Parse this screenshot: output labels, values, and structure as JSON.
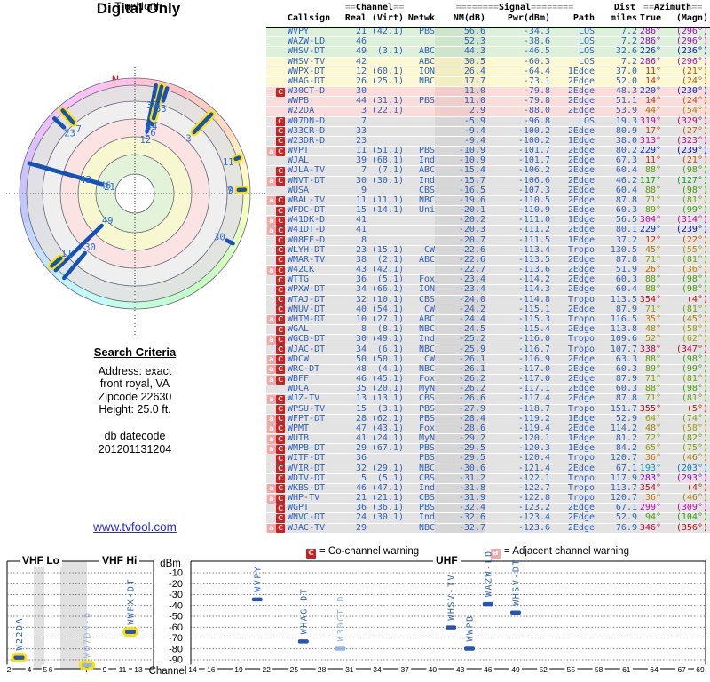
{
  "radar": {
    "title": "Digital Only",
    "subtitle": "TrueNorth",
    "north_marker": "N",
    "accent_blue": "#1353b8",
    "highlight_yellow": "#ffe100",
    "stations": [
      {
        "ch": "21",
        "az": 286,
        "nm": 56.6,
        "yellow": false
      },
      {
        "ch": "46",
        "az": 286,
        "nm": 52.3,
        "yellow": false
      },
      {
        "ch": "49",
        "az": 226,
        "nm": 44.3,
        "yellow": false
      },
      {
        "ch": "42",
        "az": 286,
        "nm": 30.5,
        "yellow": false
      },
      {
        "ch": "12",
        "az": 11,
        "nm": 26.4,
        "yellow": false
      },
      {
        "ch": "26",
        "az": 14,
        "nm": 17.7,
        "yellow": false
      },
      {
        "ch": "30",
        "az": 220,
        "nm": 11.0,
        "yellow": false
      },
      {
        "ch": "44",
        "az": 14,
        "nm": 11.0,
        "yellow": true
      },
      {
        "ch": "3",
        "az": 44,
        "nm": 2.9,
        "yellow": true
      },
      {
        "ch": "7",
        "az": 319,
        "nm": -5.9,
        "yellow": true
      },
      {
        "ch": "33",
        "az": 17,
        "nm": -9.4,
        "yellow": false
      },
      {
        "ch": "23",
        "az": 313,
        "nm": -9.4,
        "yellow": false
      },
      {
        "ch": "11",
        "az": 229,
        "nm": -10.9,
        "yellow": true
      },
      {
        "ch": "39",
        "az": 11,
        "nm": -10.9,
        "yellow": false
      },
      {
        "ch": "7",
        "az": 88,
        "nm": -15.4,
        "yellow": false
      },
      {
        "ch": "30",
        "az": 117,
        "nm": -15.7,
        "yellow": false
      },
      {
        "ch": "9",
        "az": 88,
        "nm": -16.5,
        "yellow": true
      },
      {
        "ch": "11",
        "az": 71,
        "nm": -19.6,
        "yellow": true
      }
    ]
  },
  "search_criteria": {
    "heading": "Search Criteria",
    "lines": [
      "Address: exact",
      "front royal, VA",
      "Zipcode 22630",
      "Height: 25.0 ft."
    ],
    "db_lines": [
      "db datecode",
      "201201131204"
    ]
  },
  "link": {
    "text": "www.tvfool.com"
  },
  "table": {
    "group_headers": {
      "channel": {
        "pre": "==",
        "label": "Channel",
        "post": "=="
      },
      "signal": {
        "pre": "========",
        "label": "Signal",
        "post": "========"
      },
      "dist": {
        "label": "Dist"
      },
      "azimuth": {
        "pre": "==",
        "label": "Azimuth",
        "post": "=="
      }
    },
    "columns": [
      "Callsign",
      "Real",
      "(Virt)",
      "Netwk",
      "NM(dB)",
      "Pwr(dBm)",
      "Path",
      "miles",
      "True",
      "(Magn)"
    ],
    "rows": [
      [
        "",
        "WVPY",
        "21",
        "(42.1)",
        "PBS",
        "56.6",
        "-34.3",
        "LOS",
        "7.2",
        "286°",
        "(296°)",
        "g"
      ],
      [
        "",
        "WAZW-LD",
        "46",
        "",
        "",
        "52.3",
        "-38.6",
        "LOS",
        "7.2",
        "286°",
        "(296°)",
        "g"
      ],
      [
        "",
        "WHSV-DT",
        "49",
        "(3.1)",
        "ABC",
        "44.3",
        "-46.5",
        "LOS",
        "32.6",
        "226°",
        "(236°)",
        "g"
      ],
      [
        "",
        "WHSV-TV",
        "42",
        "",
        "ABC",
        "30.5",
        "-60.3",
        "LOS",
        "7.2",
        "286°",
        "(296°)",
        "y"
      ],
      [
        "",
        "WWPX-DT",
        "12",
        "(60.1)",
        "ION",
        "26.4",
        "-64.4",
        "1Edge",
        "37.0",
        "11°",
        "(21°)",
        "y"
      ],
      [
        "",
        "WHAG-DT",
        "26",
        "(25.1)",
        "NBC",
        "17.7",
        "-73.1",
        "2Edge",
        "52.0",
        "14°",
        "(24°)",
        "y"
      ],
      [
        "C",
        "W30CT-D",
        "30",
        "",
        "",
        "11.0",
        "-79.8",
        "2Edge",
        "48.3",
        "220°",
        "(230°)",
        "p"
      ],
      [
        "",
        "WWPB",
        "44",
        "(31.1)",
        "PBS",
        "11.0",
        "-79.8",
        "2Edge",
        "51.1",
        "14°",
        "(24°)",
        "p"
      ],
      [
        "",
        "W22DA",
        "3",
        "(22.1)",
        "",
        "2.9",
        "-88.0",
        "2Edge",
        "53.9",
        "44°",
        "(54°)",
        "p"
      ],
      [
        "C",
        "W07DN-D",
        "7",
        "",
        "",
        "-5.9",
        "-96.8",
        "LOS",
        "19.3",
        "319°",
        "(329°)",
        "x"
      ],
      [
        "C",
        "W33CR-D",
        "33",
        "",
        "",
        "-9.4",
        "-100.2",
        "2Edge",
        "80.9",
        "17°",
        "(27°)",
        "x"
      ],
      [
        "C",
        "W23DR-D",
        "23",
        "",
        "",
        "-9.4",
        "-100.2",
        "1Edge",
        "38.0",
        "313°",
        "(323°)",
        "x"
      ],
      [
        "aC",
        "WVPT",
        "11",
        "(51.1)",
        "PBS",
        "-10.9",
        "-101.7",
        "2Edge",
        "80.2",
        "229°",
        "(239°)",
        "x"
      ],
      [
        "",
        "WJAL",
        "39",
        "(68.1)",
        "Ind",
        "-10.9",
        "-101.7",
        "2Edge",
        "67.3",
        "11°",
        "(21°)",
        "x"
      ],
      [
        "C",
        "WJLA-TV",
        "7",
        "(7.1)",
        "ABC",
        "-15.4",
        "-106.2",
        "2Edge",
        "60.4",
        "88°",
        "(98°)",
        "x"
      ],
      [
        "aC",
        "WNVT-DT",
        "30",
        "(30.1)",
        "Ind",
        "-15.7",
        "-106.6",
        "2Edge",
        "46.2",
        "117°",
        "(127°)",
        "x"
      ],
      [
        "",
        "WUSA",
        "9",
        "",
        "CBS",
        "-16.5",
        "-107.3",
        "2Edge",
        "60.4",
        "88°",
        "(98°)",
        "x"
      ],
      [
        "aC",
        "WBAL-TV",
        "11",
        "(11.1)",
        "NBC",
        "-19.6",
        "-110.5",
        "2Edge",
        "87.8",
        "71°",
        "(81°)",
        "x"
      ],
      [
        "C",
        "WFDC-DT",
        "15",
        "(14.1)",
        "Uni",
        "-20.1",
        "-110.9",
        "2Edge",
        "60.3",
        "89°",
        "(99°)",
        "x"
      ],
      [
        "aC",
        "W41DK-D",
        "41",
        "",
        "",
        "-20.2",
        "-111.0",
        "1Edge",
        "56.5",
        "304°",
        "(314°)",
        "x"
      ],
      [
        "aC",
        "W41DT-D",
        "41",
        "",
        "",
        "-20.3",
        "-111.2",
        "2Edge",
        "80.1",
        "229°",
        "(239°)",
        "x"
      ],
      [
        "C",
        "W08EE-D",
        "8",
        "",
        "",
        "-20.7",
        "-111.5",
        "1Edge",
        "37.2",
        "12°",
        "(22°)",
        "x"
      ],
      [
        "C",
        "WLYH-DT",
        "23",
        "(15.1)",
        "CW",
        "-22.6",
        "-113.4",
        "Tropo",
        "130.5",
        "45°",
        "(55°)",
        "x"
      ],
      [
        "C",
        "WMAR-TV",
        "38",
        "(2.1)",
        "ABC",
        "-22.6",
        "-113.5",
        "2Edge",
        "87.8",
        "71°",
        "(81°)",
        "x"
      ],
      [
        "aC",
        "W42CK",
        "43",
        "(42.1)",
        "",
        "-22.7",
        "-113.6",
        "2Edge",
        "51.9",
        "26°",
        "(36°)",
        "x"
      ],
      [
        "C",
        "WTTG",
        "36",
        "(5.1)",
        "Fox",
        "-23.4",
        "-114.2",
        "2Edge",
        "60.3",
        "88°",
        "(98°)",
        "x"
      ],
      [
        "C",
        "WPXW-DT",
        "34",
        "(66.1)",
        "ION",
        "-23.4",
        "-114.3",
        "2Edge",
        "60.4",
        "88°",
        "(98°)",
        "x"
      ],
      [
        "C",
        "WTAJ-DT",
        "32",
        "(10.1)",
        "CBS",
        "-24.0",
        "-114.8",
        "Tropo",
        "113.5",
        "354°",
        "(4°)",
        "x"
      ],
      [
        "C",
        "WNUV-DT",
        "40",
        "(54.1)",
        "CW",
        "-24.2",
        "-115.1",
        "2Edge",
        "87.9",
        "71°",
        "(81°)",
        "x"
      ],
      [
        "aC",
        "WHTM-DT",
        "10",
        "(27.1)",
        "ABC",
        "-24.4",
        "-115.3",
        "Tropo",
        "116.5",
        "35°",
        "(45°)",
        "x"
      ],
      [
        "C",
        "WGAL",
        "8",
        "(8.1)",
        "NBC",
        "-24.5",
        "-115.4",
        "2Edge",
        "113.8",
        "48°",
        "(58°)",
        "x"
      ],
      [
        "aC",
        "WGCB-DT",
        "30",
        "(49.1)",
        "Ind",
        "-25.2",
        "-116.0",
        "Tropo",
        "109.6",
        "52°",
        "(62°)",
        "x"
      ],
      [
        "C",
        "WJAC-DT",
        "34",
        "(6.1)",
        "NBC",
        "-25.9",
        "-116.7",
        "Tropo",
        "107.7",
        "338°",
        "(347°)",
        "x"
      ],
      [
        "aC",
        "WDCW",
        "50",
        "(50.1)",
        "CW",
        "-26.1",
        "-116.9",
        "2Edge",
        "63.3",
        "88°",
        "(98°)",
        "x"
      ],
      [
        "aC",
        "WRC-DT",
        "48",
        "(4.1)",
        "NBC",
        "-26.1",
        "-117.0",
        "2Edge",
        "60.3",
        "89°",
        "(99°)",
        "x"
      ],
      [
        "aC",
        "WBFF",
        "46",
        "(45.1)",
        "Fox",
        "-26.2",
        "-117.0",
        "2Edge",
        "87.9",
        "71°",
        "(81°)",
        "x"
      ],
      [
        "",
        "WDCA",
        "35",
        "(20.1)",
        "MyN",
        "-26.2",
        "-117.1",
        "2Edge",
        "60.3",
        "88°",
        "(98°)",
        "x"
      ],
      [
        "aC",
        "WJZ-TV",
        "13",
        "(13.1)",
        "CBS",
        "-26.6",
        "-117.4",
        "2Edge",
        "87.8",
        "71°",
        "(81°)",
        "x"
      ],
      [
        "C",
        "WPSU-TV",
        "15",
        "(3.1)",
        "PBS",
        "-27.9",
        "-118.7",
        "Tropo",
        "151.7",
        "355°",
        "(5°)",
        "x"
      ],
      [
        "aC",
        "WFPT-DT",
        "28",
        "(62.1)",
        "PBS",
        "-28.4",
        "-119.2",
        "1Edge",
        "52.9",
        "64°",
        "(74°)",
        "x"
      ],
      [
        "aC",
        "WPMT",
        "47",
        "(43.1)",
        "Fox",
        "-28.6",
        "-119.4",
        "2Edge",
        "114.2",
        "48°",
        "(58°)",
        "x"
      ],
      [
        "aC",
        "WUTB",
        "41",
        "(24.1)",
        "MyN",
        "-29.2",
        "-120.1",
        "1Edge",
        "81.2",
        "72°",
        "(82°)",
        "x"
      ],
      [
        "aC",
        "WMPB-DT",
        "29",
        "(67.1)",
        "PBS",
        "-29.5",
        "-120.3",
        "1Edge",
        "84.2",
        "65°",
        "(75°)",
        "x"
      ],
      [
        "C",
        "WITF-DT",
        "36",
        "",
        "PBS",
        "-29.5",
        "-120.4",
        "Tropo",
        "120.7",
        "36°",
        "(46°)",
        "x"
      ],
      [
        "C",
        "WVIR-DT",
        "32",
        "(29.1)",
        "NBC",
        "-30.6",
        "-121.4",
        "2Edge",
        "67.1",
        "193°",
        "(203°)",
        "x"
      ],
      [
        "C",
        "WDTV-DT",
        "5",
        "(5.1)",
        "CBS",
        "-31.2",
        "-122.1",
        "Tropo",
        "117.9",
        "283°",
        "(293°)",
        "x"
      ],
      [
        "aC",
        "WKBS-DT",
        "46",
        "(47.1)",
        "Ind",
        "-31.8",
        "-122.7",
        "Tropo",
        "113.7",
        "354°",
        "(4°)",
        "x"
      ],
      [
        "aC",
        "WHP-TV",
        "21",
        "(21.1)",
        "CBS",
        "-31.9",
        "-122.8",
        "Tropo",
        "120.7",
        "36°",
        "(46°)",
        "x"
      ],
      [
        "C",
        "WGPT",
        "36",
        "(36.1)",
        "PBS",
        "-32.4",
        "-123.2",
        "2Edge",
        "67.1",
        "299°",
        "(309°)",
        "x"
      ],
      [
        "C",
        "WNVC-DT",
        "24",
        "(30.1)",
        "Ind",
        "-32.6",
        "-123.4",
        "2Edge",
        "52.9",
        "94°",
        "(104°)",
        "x"
      ],
      [
        "aC",
        "WJAC-TV",
        "29",
        "",
        "NBC",
        "-32.7",
        "-123.6",
        "2Edge",
        "76.9",
        "346°",
        "(356°)",
        "x"
      ]
    ]
  },
  "legend": {
    "co": {
      "badge": "C",
      "text": "= Co-channel warning"
    },
    "adj": {
      "badge": "a",
      "text": "= Adjacent channel warning"
    }
  },
  "chart_data": [
    {
      "type": "scatter",
      "title": "VHF Lo / VHF Hi",
      "band_labels": {
        "lo": "VHF Lo",
        "hi": "VHF Hi"
      },
      "xlabel": "Channel",
      "ylabel": "dBm",
      "x_ticks": [
        2,
        4,
        5,
        6,
        7,
        9,
        11,
        13
      ],
      "y_ticks": [
        -10,
        -20,
        -30,
        -40,
        -50,
        -60,
        -70,
        -80,
        -90
      ],
      "ylim": [
        -97,
        -5
      ],
      "grid": true,
      "points": [
        {
          "callsign": "W22DA",
          "channel": 3,
          "dbm": -88.0,
          "yellow": true,
          "faded": false
        },
        {
          "callsign": "W07DN-D",
          "channel": 7,
          "dbm": -96.8,
          "yellow": true,
          "faded": true
        },
        {
          "callsign": "WWPX-DT",
          "channel": 12,
          "dbm": -64.4,
          "yellow": true,
          "faded": false
        }
      ]
    },
    {
      "type": "scatter",
      "title": "UHF",
      "band_labels": {
        "band": "UHF"
      },
      "xlabel": "Channel",
      "ylabel": "dBm",
      "x_ticks": [
        14,
        16,
        19,
        22,
        25,
        28,
        31,
        34,
        37,
        40,
        43,
        46,
        49,
        52,
        55,
        58,
        61,
        64,
        67,
        69
      ],
      "y_ticks": [
        -10,
        -20,
        -30,
        -40,
        -50,
        -60,
        -70,
        -80,
        -90
      ],
      "ylim": [
        -97,
        -5
      ],
      "grid": true,
      "points": [
        {
          "callsign": "WVPY",
          "channel": 21,
          "dbm": -34.3,
          "yellow": false,
          "faded": false
        },
        {
          "callsign": "WHAG-DT",
          "channel": 26,
          "dbm": -73.1,
          "yellow": false,
          "faded": false
        },
        {
          "callsign": "W30CT-D",
          "channel": 30,
          "dbm": -79.8,
          "yellow": false,
          "faded": true
        },
        {
          "callsign": "WHSV-TV",
          "channel": 42,
          "dbm": -60.3,
          "yellow": false,
          "faded": false
        },
        {
          "callsign": "WWPB",
          "channel": 44,
          "dbm": -79.8,
          "yellow": false,
          "faded": false
        },
        {
          "callsign": "WAZW-LD",
          "channel": 46,
          "dbm": -38.6,
          "yellow": false,
          "faded": false
        },
        {
          "callsign": "WHSV-DT",
          "channel": 49,
          "dbm": -46.5,
          "yellow": false,
          "faded": false
        }
      ]
    }
  ]
}
